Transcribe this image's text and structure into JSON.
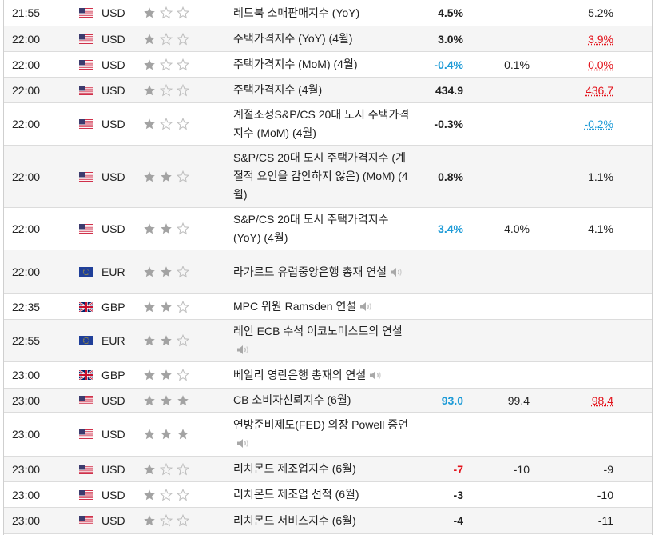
{
  "rows": [
    {
      "time": "21:55",
      "flag": "us",
      "currency": "USD",
      "stars": 1,
      "event": "레드북 소매판매지수 (YoY)",
      "speech": false,
      "actual": "4.5%",
      "actual_style": "",
      "forecast": "",
      "previous": "5.2%",
      "previous_style": ""
    },
    {
      "time": "22:00",
      "flag": "us",
      "currency": "USD",
      "stars": 1,
      "event": "주택가격지수 (YoY) (4월)",
      "speech": false,
      "actual": "3.0%",
      "actual_style": "",
      "forecast": "",
      "previous": "3.9%",
      "previous_style": "prev-neg"
    },
    {
      "time": "22:00",
      "flag": "us",
      "currency": "USD",
      "stars": 1,
      "event": "주택가격지수 (MoM) (4월)",
      "speech": false,
      "actual": "-0.4%",
      "actual_style": "pos",
      "forecast": "0.1%",
      "previous": "0.0%",
      "previous_style": "prev-neg"
    },
    {
      "time": "22:00",
      "flag": "us",
      "currency": "USD",
      "stars": 1,
      "event": "주택가격지수 (4월)",
      "speech": false,
      "actual": "434.9",
      "actual_style": "",
      "forecast": "",
      "previous": "436.7",
      "previous_style": "prev-neg"
    },
    {
      "time": "22:00",
      "flag": "us",
      "currency": "USD",
      "stars": 1,
      "event": "계절조정S&P/CS 20대 도시 주택가격지수 (MoM) (4월)",
      "speech": false,
      "actual": "-0.3%",
      "actual_style": "",
      "forecast": "",
      "previous": "-0.2%",
      "previous_style": "prev-pos"
    },
    {
      "time": "22:00",
      "flag": "us",
      "currency": "USD",
      "stars": 2,
      "event": "S&P/CS 20대 도시 주택가격지수 (계절적 요인을 감안하지 않은) (MoM) (4월)",
      "speech": false,
      "actual": "0.8%",
      "actual_style": "",
      "forecast": "",
      "previous": "1.1%",
      "previous_style": ""
    },
    {
      "time": "22:00",
      "flag": "us",
      "currency": "USD",
      "stars": 2,
      "event": "S&P/CS 20대 도시 주택가격지수 (YoY) (4월)",
      "speech": false,
      "actual": "3.4%",
      "actual_style": "pos",
      "forecast": "4.0%",
      "previous": "4.1%",
      "previous_style": ""
    },
    {
      "time": "22:00",
      "flag": "eu",
      "currency": "EUR",
      "stars": 2,
      "event": "라가르드 유럽중앙은행 총재 연설",
      "speech": true,
      "actual": "",
      "actual_style": "",
      "forecast": "",
      "previous": "",
      "previous_style": ""
    },
    {
      "time": "22:35",
      "flag": "gb",
      "currency": "GBP",
      "stars": 2,
      "event": "MPC 위원 Ramsden 연설",
      "speech": true,
      "actual": "",
      "actual_style": "",
      "forecast": "",
      "previous": "",
      "previous_style": ""
    },
    {
      "time": "22:55",
      "flag": "eu",
      "currency": "EUR",
      "stars": 2,
      "event": "레인 ECB 수석 이코노미스트의 연설",
      "speech": true,
      "actual": "",
      "actual_style": "",
      "forecast": "",
      "previous": "",
      "previous_style": ""
    },
    {
      "time": "23:00",
      "flag": "gb",
      "currency": "GBP",
      "stars": 2,
      "event": "베일리 영란은행 총재의 연설",
      "speech": true,
      "actual": "",
      "actual_style": "",
      "forecast": "",
      "previous": "",
      "previous_style": ""
    },
    {
      "time": "23:00",
      "flag": "us",
      "currency": "USD",
      "stars": 3,
      "event": "CB 소비자신뢰지수 (6월)",
      "speech": false,
      "actual": "93.0",
      "actual_style": "pos",
      "forecast": "99.4",
      "previous": "98.4",
      "previous_style": "prev-neg"
    },
    {
      "time": "23:00",
      "flag": "us",
      "currency": "USD",
      "stars": 3,
      "event": "연방준비제도(FED) 의장 Powell 증언",
      "speech": true,
      "actual": "",
      "actual_style": "",
      "forecast": "",
      "previous": "",
      "previous_style": ""
    },
    {
      "time": "23:00",
      "flag": "us",
      "currency": "USD",
      "stars": 1,
      "event": "리치몬드 제조업지수 (6월)",
      "speech": false,
      "actual": "-7",
      "actual_style": "neg",
      "forecast": "-10",
      "previous": "-9",
      "previous_style": ""
    },
    {
      "time": "23:00",
      "flag": "us",
      "currency": "USD",
      "stars": 1,
      "event": "리치몬드 제조업 선적 (6월)",
      "speech": false,
      "actual": "-3",
      "actual_style": "",
      "forecast": "",
      "previous": "-10",
      "previous_style": ""
    },
    {
      "time": "23:00",
      "flag": "us",
      "currency": "USD",
      "stars": 1,
      "event": "리치몬드 서비스지수 (6월)",
      "speech": false,
      "actual": "-4",
      "actual_style": "",
      "forecast": "",
      "previous": "-11",
      "previous_style": ""
    }
  ],
  "colors": {
    "positive": "#1e9bd7",
    "negative": "#e3121b",
    "star_on": "#a3a3a3",
    "star_off": "#bdbdbd"
  }
}
